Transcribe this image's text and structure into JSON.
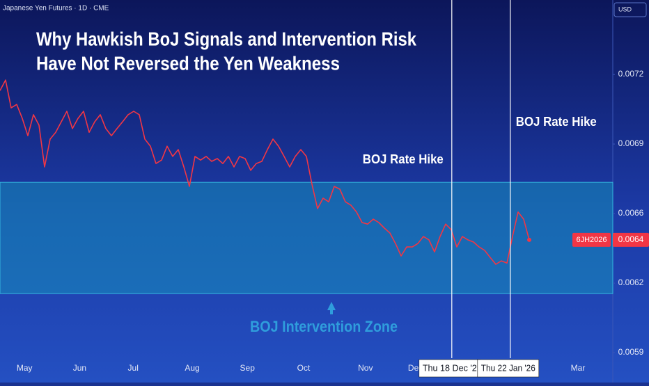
{
  "chart_data": {
    "type": "line",
    "header": "Japanese Yen Futures · 1D · CME",
    "currency": "USD",
    "title": "Why Hawkish BoJ Signals and Intervention Risk",
    "subtitle": "Have Not Reversed the Yen Weakness",
    "series": [
      {
        "name": "6JH2026",
        "color": "#f23645",
        "last_label": "0.0064",
        "values": [
          0.007125,
          0.007174,
          0.007044,
          0.00706,
          0.006995,
          0.006914,
          0.007012,
          0.006963,
          0.006768,
          0.006898,
          0.00693,
          0.006979,
          0.007028,
          0.006947,
          0.006995,
          0.007028,
          0.00693,
          0.006979,
          0.007012,
          0.006947,
          0.006914,
          0.006947,
          0.006979,
          0.007012,
          0.007028,
          0.007012,
          0.006898,
          0.006865,
          0.006784,
          0.0068,
          0.006865,
          0.006817,
          0.006849,
          0.006768,
          0.006677,
          0.006817,
          0.0068,
          0.006817,
          0.006794,
          0.006807,
          0.006784,
          0.006817,
          0.006768,
          0.006817,
          0.006807,
          0.006752,
          0.006784,
          0.006794,
          0.006849,
          0.006898,
          0.006865,
          0.006817,
          0.006768,
          0.006817,
          0.006849,
          0.006817,
          0.006687,
          0.006573,
          0.006622,
          0.006605,
          0.006677,
          0.006664,
          0.006605,
          0.006589,
          0.006557,
          0.006508,
          0.006501,
          0.006524,
          0.006508,
          0.006482,
          0.006459,
          0.00641,
          0.006352,
          0.006394,
          0.006394,
          0.00641,
          0.006443,
          0.006427,
          0.006371,
          0.006443,
          0.006501,
          0.006475,
          0.006394,
          0.006443,
          0.006427,
          0.006417,
          0.006394,
          0.006378,
          0.006345,
          0.006313,
          0.006329,
          0.006319,
          0.006443,
          0.006557,
          0.006524,
          0.006427
        ]
      }
    ],
    "xlim": [
      0,
      110
    ],
    "xticks": [
      {
        "value": 4.4,
        "label": "May"
      },
      {
        "value": 14.3,
        "label": "Jun"
      },
      {
        "value": 23.9,
        "label": "Jul"
      },
      {
        "value": 34.5,
        "label": "Aug"
      },
      {
        "value": 44.4,
        "label": "Sep"
      },
      {
        "value": 54.5,
        "label": "Oct"
      },
      {
        "value": 65.6,
        "label": "Nov"
      },
      {
        "value": 74.2,
        "label": "De"
      },
      {
        "value": 103.75,
        "label": "Mar"
      }
    ],
    "ylim": [
      0.005858,
      0.007548
    ],
    "yticks": [
      {
        "value": 0.0059,
        "label": "0.0059"
      },
      {
        "value": 0.006225,
        "label": "0.0062"
      },
      {
        "value": 0.00655,
        "label": "0.0066"
      },
      {
        "value": 0.006875,
        "label": "0.0069"
      },
      {
        "value": 0.0072,
        "label": "0.0072"
      }
    ],
    "grid": false,
    "zone": {
      "label": "BOJ Intervention Zone",
      "range": [
        0.006176,
        0.006696
      ]
    },
    "vlines": [
      {
        "x": 81.1,
        "label": "Thu 18 Dec '2",
        "annotation": "BOJ Rate Hike"
      },
      {
        "x": 91.6,
        "label": "Thu 22 Jan '26",
        "annotation": "BOJ Rate Hike"
      }
    ]
  }
}
